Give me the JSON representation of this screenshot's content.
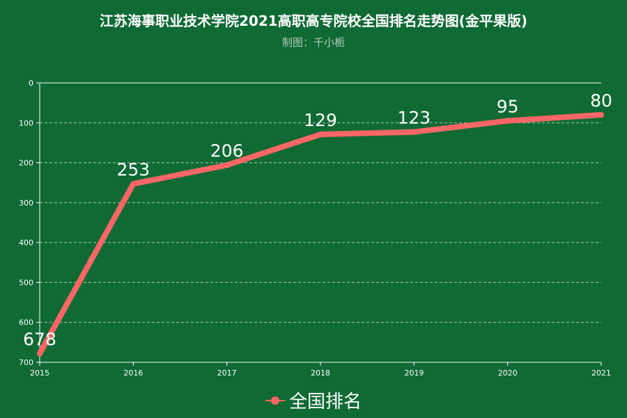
{
  "title": "江苏海事职业技术学院2021高职高专院校全国排名走势图(金平果版)",
  "subtitle": "制图：千小栀",
  "colors": {
    "background": "#0f6a34",
    "series": "#ff6666",
    "axis": "#ffffff",
    "grid": "#b8c9bc"
  },
  "chart_data": {
    "type": "line",
    "title": "江苏海事职业技术学院2021高职高专院校全国排名走势图(金平果版)",
    "subtitle": "制图：千小栀",
    "x": [
      "2015",
      "2016",
      "2017",
      "2018",
      "2019",
      "2020",
      "2021"
    ],
    "series": [
      {
        "name": "全国排名",
        "values": [
          678,
          253,
          206,
          129,
          123,
          95,
          80
        ]
      }
    ],
    "data_labels": [
      "678",
      "253",
      "206",
      "129",
      "123",
      "95",
      "80"
    ],
    "y_ticks": [
      "0",
      "100",
      "200",
      "300",
      "400",
      "500",
      "600",
      "700"
    ],
    "ylim": [
      0,
      700
    ],
    "y_inverted": true,
    "grid": "horizontal dashed",
    "legend": "bottom-center",
    "xlabel": "",
    "ylabel": ""
  }
}
